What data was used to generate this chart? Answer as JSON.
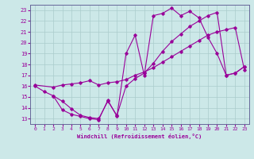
{
  "xlabel": "Windchill (Refroidissement éolien,°C)",
  "bg_color": "#cce8e8",
  "line_color": "#990099",
  "xlim": [
    -0.5,
    23.5
  ],
  "ylim": [
    12.5,
    23.5
  ],
  "yticks": [
    13,
    14,
    15,
    16,
    17,
    18,
    19,
    20,
    21,
    22,
    23
  ],
  "xticks": [
    0,
    1,
    2,
    3,
    4,
    5,
    6,
    7,
    8,
    9,
    10,
    11,
    12,
    13,
    14,
    15,
    16,
    17,
    18,
    19,
    20,
    21,
    22,
    23
  ],
  "line1_x": [
    0,
    1,
    2,
    3,
    4,
    5,
    6,
    7,
    8,
    9,
    10,
    11,
    12,
    13,
    14,
    15,
    16,
    17,
    18,
    19,
    20,
    21,
    22,
    23
  ],
  "line1_y": [
    16,
    15.5,
    15.1,
    13.8,
    13.4,
    13.2,
    13.0,
    12.9,
    14.7,
    13.2,
    19.0,
    20.7,
    17.0,
    22.5,
    22.7,
    23.2,
    22.5,
    22.9,
    22.3,
    20.5,
    19.0,
    17.0,
    17.2,
    17.8
  ],
  "line2_x": [
    0,
    2,
    3,
    4,
    5,
    6,
    7,
    8,
    9,
    10,
    11,
    12,
    13,
    14,
    15,
    16,
    17,
    18,
    19,
    20,
    21,
    22,
    23
  ],
  "line2_y": [
    16.1,
    15.9,
    16.1,
    16.2,
    16.3,
    16.5,
    16.1,
    16.3,
    16.4,
    16.6,
    17.0,
    17.3,
    17.7,
    18.2,
    18.7,
    19.2,
    19.7,
    20.2,
    20.7,
    21.0,
    21.2,
    21.4,
    17.5
  ],
  "line3_x": [
    2,
    3,
    4,
    5,
    6,
    7,
    8,
    9,
    10,
    11,
    12,
    13,
    14,
    15,
    16,
    17,
    18,
    19,
    20,
    21,
    22,
    23
  ],
  "line3_y": [
    15.1,
    14.6,
    13.9,
    13.3,
    13.1,
    13.0,
    14.6,
    13.3,
    16.0,
    16.7,
    17.2,
    18.1,
    19.2,
    20.1,
    20.8,
    21.5,
    22.0,
    22.5,
    22.8,
    17.0,
    17.2,
    17.8
  ]
}
